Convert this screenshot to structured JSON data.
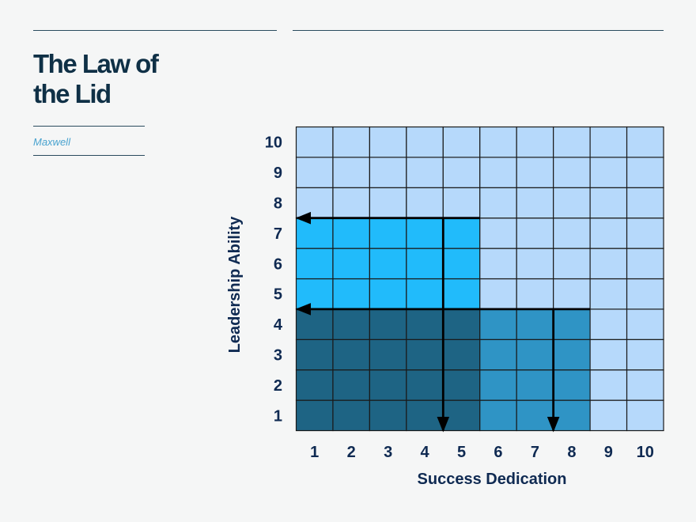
{
  "slide": {
    "title_line1": "The Law of",
    "title_line2": "the Lid",
    "subtitle": "Maxwell"
  },
  "colors": {
    "title": "#0f3046",
    "subtitle": "#4aa3cf",
    "rule": "#2a4b5e",
    "cell_background": "#b6d9fb",
    "leadership_block": "#21bbfb",
    "lid_block": "#1e6484",
    "dedication_block": "#2f94c5",
    "axis_text": "#0f2a52",
    "arrow": "#000000"
  },
  "chart_data": {
    "type": "heatmap",
    "title": "",
    "xlabel": "Success Dedication",
    "ylabel": "Leadership Ability",
    "x_ticks": [
      "1",
      "2",
      "3",
      "4",
      "5",
      "6",
      "7",
      "8",
      "9",
      "10"
    ],
    "y_ticks": [
      "1",
      "2",
      "3",
      "4",
      "5",
      "6",
      "7",
      "8",
      "9",
      "10"
    ],
    "grid": true,
    "regions": [
      {
        "name": "leadership-high",
        "x_range": [
          1,
          5
        ],
        "y_range": [
          5,
          7
        ],
        "color_key": "leadership_block"
      },
      {
        "name": "lid",
        "x_range": [
          1,
          5
        ],
        "y_range": [
          1,
          4
        ],
        "color_key": "lid_block"
      },
      {
        "name": "dedication-high",
        "x_range": [
          6,
          8
        ],
        "y_range": [
          1,
          4
        ],
        "color_key": "dedication_block"
      }
    ],
    "arrows": [
      {
        "name": "ability-7",
        "direction": "left",
        "level": 7,
        "from": 5
      },
      {
        "name": "ability-4",
        "direction": "left",
        "level": 4,
        "from": 8
      },
      {
        "name": "dedication-5",
        "direction": "down",
        "level": 5,
        "from": 7
      },
      {
        "name": "dedication-8",
        "direction": "down",
        "level": 8,
        "from": 4
      }
    ]
  }
}
